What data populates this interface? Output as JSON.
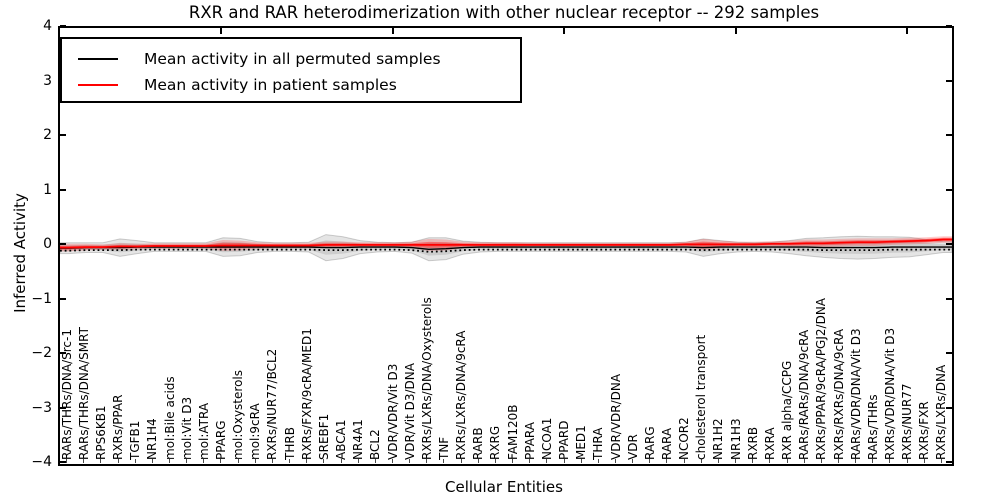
{
  "title": "RXR and RAR heterodimerization with other nuclear receptor -- 292 samples",
  "legend": {
    "entries": [
      {
        "label": "Mean activity in all permuted samples",
        "color": "#000000"
      },
      {
        "label": "Mean activity in patient samples",
        "color": "#ff0000"
      }
    ]
  },
  "axes": {
    "ylabel": "Inferred Activity",
    "xlabel": "Cellular Entities",
    "ytick_labels": [
      "4",
      "3",
      "2",
      "1",
      "0",
      "−1",
      "−2",
      "−3",
      "−4"
    ]
  },
  "chart_data": {
    "type": "line",
    "title": "RXR and RAR heterodimerization with other nuclear receptor -- 292 samples",
    "xlabel": "Cellular Entities",
    "ylabel": "Inferred Activity",
    "ylim": [
      -4,
      4
    ],
    "yticks": [
      4,
      3,
      2,
      1,
      0,
      -1,
      -2,
      -3,
      -4
    ],
    "grid": false,
    "legend_position": "upper left",
    "categories": [
      "RARs/THRs/DNA/Src-1",
      "RARs/THRs/DNA/SMRT",
      "RPS6KB1",
      "RXRs/PPAR",
      "TGFB1",
      "NR1H4",
      "mol:Bile acids",
      "mol:Vit D3",
      "mol:ATRA",
      "PPARG",
      "mol:Oxysterols",
      "mol:9cRA",
      "RXRs/NUR77/BCL2",
      "THRB",
      "RXRs/FXR/9cRA/MED1",
      "SREBF1",
      "ABCA1",
      "NR4A1",
      "BCL2",
      "VDR/VDR/Vit D3",
      "VDR/Vit D3/DNA",
      "RXRs/LXRs/DNA/Oxysterols",
      "TNF",
      "RXRs/LXRs/DNA/9cRA",
      "RARB",
      "RXRG",
      "FAM120B",
      "PPARA",
      "NCOA1",
      "PPARD",
      "MED1",
      "THRA",
      "VDR/VDR/DNA",
      "VDR",
      "RARG",
      "RARA",
      "NCOR2",
      "cholesterol transport",
      "NR1H2",
      "NR1H3",
      "RXRB",
      "RXRA",
      "RXR alpha/CCPG",
      "RARs/RARs/DNA/9cRA",
      "RXRs/PPAR/9cRA/PGJ2/DNA",
      "RXRs/RXRs/DNA/9cRA",
      "RARs/VDR/DNA/Vit D3",
      "RARs/THRs",
      "RXRs/VDR/DNA/Vit D3",
      "RXRs/NUR77",
      "RXRs/FXR",
      "RXRs/LXRs/DNA"
    ],
    "series": [
      {
        "name": "Mean activity in all permuted samples",
        "color": "#000000",
        "values": [
          -0.04,
          -0.03,
          -0.03,
          -0.03,
          -0.02,
          -0.02,
          -0.02,
          -0.02,
          -0.02,
          -0.02,
          -0.02,
          -0.02,
          -0.02,
          -0.02,
          -0.02,
          -0.03,
          -0.03,
          -0.02,
          -0.02,
          -0.02,
          -0.03,
          -0.06,
          -0.05,
          -0.03,
          -0.02,
          -0.02,
          -0.02,
          -0.02,
          -0.02,
          -0.02,
          -0.02,
          -0.02,
          -0.02,
          -0.02,
          -0.02,
          -0.02,
          -0.02,
          -0.03,
          -0.02,
          -0.02,
          -0.02,
          -0.02,
          -0.02,
          -0.02,
          -0.03,
          -0.03,
          -0.03,
          -0.03,
          -0.02,
          -0.02,
          -0.02,
          -0.02
        ]
      },
      {
        "name": "Mean activity in patient samples",
        "color": "#ff0000",
        "values": [
          -0.03,
          -0.02,
          -0.02,
          -0.01,
          -0.01,
          0,
          0,
          0,
          0,
          0.01,
          0.01,
          0.01,
          0.01,
          0.01,
          0.01,
          0.02,
          0.02,
          0.02,
          0.02,
          0.02,
          0.02,
          0.02,
          0.02,
          0.02,
          0.02,
          0.02,
          0.02,
          0.02,
          0.02,
          0.02,
          0.02,
          0.02,
          0.02,
          0.02,
          0.02,
          0.02,
          0.03,
          0.03,
          0.03,
          0.03,
          0.03,
          0.04,
          0.04,
          0.05,
          0.05,
          0.06,
          0.07,
          0.07,
          0.08,
          0.09,
          0.1,
          0.12
        ]
      }
    ],
    "bands": {
      "permuted_halfwidth": [
        0.1,
        0.09,
        0.09,
        0.16,
        0.12,
        0.08,
        0.08,
        0.08,
        0.08,
        0.17,
        0.16,
        0.1,
        0.08,
        0.08,
        0.09,
        0.24,
        0.2,
        0.12,
        0.09,
        0.08,
        0.1,
        0.21,
        0.2,
        0.12,
        0.09,
        0.08,
        0.08,
        0.08,
        0.08,
        0.08,
        0.08,
        0.08,
        0.08,
        0.08,
        0.08,
        0.08,
        0.09,
        0.16,
        0.12,
        0.09,
        0.08,
        0.09,
        0.12,
        0.16,
        0.18,
        0.2,
        0.21,
        0.2,
        0.19,
        0.18,
        0.14,
        0.1
      ],
      "patient_halfwidth": [
        0.07,
        0.06,
        0.05,
        0.06,
        0.05,
        0.05,
        0.05,
        0.05,
        0.05,
        0.1,
        0.09,
        0.06,
        0.05,
        0.05,
        0.05,
        0.06,
        0.06,
        0.05,
        0.05,
        0.05,
        0.06,
        0.11,
        0.1,
        0.06,
        0.05,
        0.05,
        0.05,
        0.04,
        0.04,
        0.04,
        0.04,
        0.04,
        0.04,
        0.04,
        0.04,
        0.04,
        0.05,
        0.1,
        0.07,
        0.05,
        0.05,
        0.05,
        0.06,
        0.07,
        0.07,
        0.07,
        0.07,
        0.07,
        0.06,
        0.06,
        0.06,
        0.06
      ]
    },
    "colors": {
      "permuted_band_fill": "rgba(0,0,0,0.10)",
      "permuted_band_edge": "rgba(0,0,0,0.18)",
      "patient_band_fill": "rgba(255,0,0,0.20)",
      "patient_band_core": "rgba(255,0,0,0.38)"
    }
  }
}
